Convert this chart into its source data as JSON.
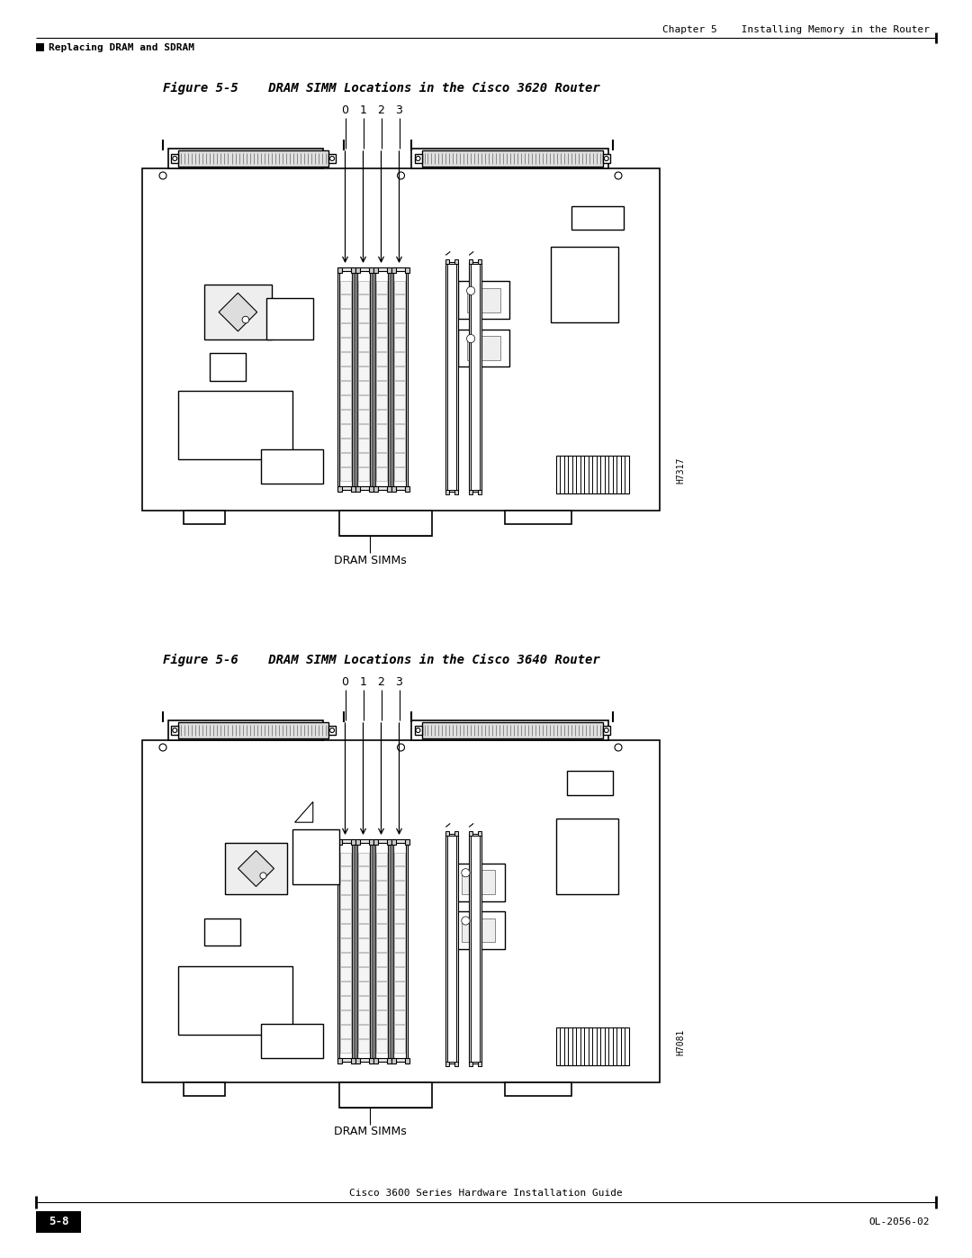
{
  "page_title_right": "Chapter 5    Installing Memory in the Router",
  "page_subtitle_left": "Replacing DRAM and SDRAM",
  "page_number": "5-8",
  "page_doc": "OL-2056-02",
  "footer_text": "Cisco 3600 Series Hardware Installation Guide",
  "fig1_title": "Figure 5-5    DRAM SIMM Locations in the Cisco 3620 Router",
  "fig2_title": "Figure 5-6    DRAM SIMM Locations in the Cisco 3640 Router",
  "fig1_label": "DRAM SIMMs",
  "fig2_label": "DRAM SIMMs",
  "fig1_id": "H7317",
  "fig2_id": "H7081",
  "simm_labels": [
    "0",
    "1",
    "2",
    "3"
  ],
  "bg_color": "#ffffff",
  "line_color": "#000000"
}
